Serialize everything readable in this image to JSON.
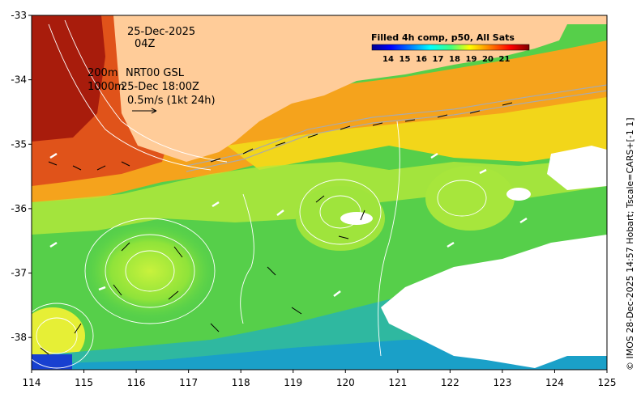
{
  "map": {
    "date_label": "25-Dec-2025",
    "time_label": "04Z",
    "contour_label_200": "200m",
    "contour_label_1000": "1000m",
    "product_label": "NRT00 GSL",
    "product_time": "25-Dec 18:00Z",
    "scale_label": "0.5m/s (1kt 24h)",
    "credit": "© IMOS 28-Dec-2025 14:57 Hobart; Tscale=CARS+[-1 1]",
    "land_color": "#ffcc99",
    "cloud_color": "#ffffff"
  },
  "colorbar": {
    "title": "Filled 4h comp, p50, All Sats",
    "labels": [
      "14",
      "15",
      "16",
      "17",
      "18",
      "19",
      "20",
      "21"
    ],
    "colormap": "jet"
  },
  "axes": {
    "x_ticks": [
      "114",
      "115",
      "116",
      "117",
      "118",
      "119",
      "120",
      "121",
      "122",
      "123",
      "124",
      "125"
    ],
    "y_ticks": [
      "-33",
      "-34",
      "-35",
      "-36",
      "-37",
      "-38"
    ],
    "xlim": [
      114,
      125
    ],
    "ylim": [
      -38.5,
      -33
    ]
  }
}
